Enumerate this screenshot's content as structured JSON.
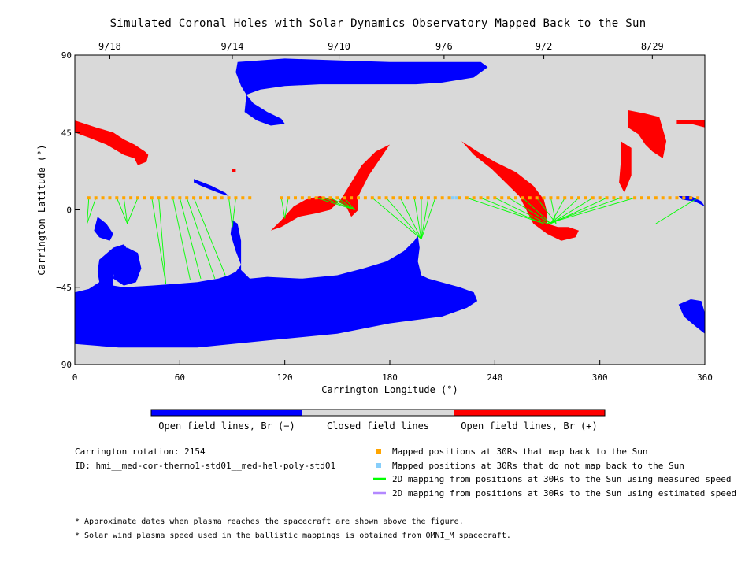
{
  "title": "Simulated Coronal Holes with Solar Dynamics Observatory Mapped Back to the Sun",
  "top_dates": [
    {
      "label": "9/18",
      "lon": 20
    },
    {
      "label": "9/14",
      "lon": 90
    },
    {
      "label": "9/10",
      "lon": 151
    },
    {
      "label": "9/6",
      "lon": 211
    },
    {
      "label": "9/2",
      "lon": 268
    },
    {
      "label": "8/29",
      "lon": 330
    }
  ],
  "colorbar": {
    "labels": [
      "Open field lines, Br (−)",
      "Closed field lines",
      "Open field lines, Br (+)"
    ],
    "colors": [
      "#0000ff",
      "#d9d9d9",
      "#ff0000"
    ]
  },
  "info": {
    "rotation": "Carrington rotation: 2154",
    "id": "ID: hmi__med-cor-thermo1-std01__med-hel-poly-std01"
  },
  "legend": [
    {
      "label": "Mapped positions at 30Rs that map back to the Sun",
      "color": "#ffa500",
      "kind": "square"
    },
    {
      "label": "Mapped positions at 30Rs that do not map back to the Sun",
      "color": "#87cefa",
      "kind": "square"
    },
    {
      "label": "2D mapping from positions at 30Rs to the Sun using measured speed",
      "color": "#00ff00",
      "kind": "line"
    },
    {
      "label": "2D mapping from positions at 30Rs to the Sun using estimated speed",
      "color": "#b388ff",
      "kind": "line"
    }
  ],
  "footnotes": [
    "* Approximate dates when plasma reaches the spacecraft are shown above the figure.",
    "* Solar wind plasma speed used in the ballistic mappings is obtained from OMNI_M spacecraft."
  ],
  "chart_data": {
    "type": "scatter",
    "title": "Simulated Coronal Holes with Solar Dynamics Observatory Mapped Back to the Sun",
    "xlabel": "Carrington Longitude (°)",
    "ylabel": "Carrington Latitude (°)",
    "xlim": [
      0,
      360
    ],
    "ylim": [
      -90,
      90
    ],
    "xticks": [
      0,
      60,
      120,
      180,
      240,
      300,
      360
    ],
    "yticks": [
      -90,
      -45,
      0,
      45,
      90
    ],
    "grid": false,
    "background_color": "#d9d9d9",
    "mapped_latitude": 7,
    "mapped_positions_lon": [
      8,
      12,
      16,
      20,
      24,
      28,
      32,
      36,
      40,
      44,
      48,
      52,
      56,
      60,
      64,
      68,
      72,
      76,
      80,
      84,
      88,
      92,
      96,
      100,
      118,
      122,
      126,
      130,
      134,
      138,
      142,
      146,
      150,
      154,
      158,
      162,
      166,
      170,
      174,
      178,
      182,
      186,
      190,
      194,
      198,
      202,
      206,
      210,
      214,
      220,
      224,
      228,
      232,
      236,
      240,
      244,
      248,
      252,
      256,
      260,
      264,
      268,
      272,
      276,
      280,
      284,
      288,
      292,
      296,
      300,
      304,
      308,
      312,
      316,
      320,
      324,
      328,
      332,
      336,
      340,
      344,
      348,
      352,
      356
    ],
    "unmapped_positions_lon": [
      216,
      218
    ],
    "coronal_hole_regions": [
      {
        "polarity": "negative",
        "region": "south polar hole",
        "lon": [
          0,
          230
        ],
        "lat": [
          -80,
          -43
        ]
      },
      {
        "polarity": "negative",
        "region": "south polar extension",
        "lon": [
          10,
          50
        ],
        "lat": [
          -50,
          -10
        ]
      },
      {
        "polarity": "negative",
        "region": "north polar hole",
        "lon": [
          93,
          237
        ],
        "lat": [
          65,
          85
        ]
      },
      {
        "polarity": "negative",
        "region": "lobe near 90",
        "lon": [
          85,
          95
        ],
        "lat": [
          -40,
          5
        ]
      },
      {
        "polarity": "negative",
        "region": "equatorial lobe near 200",
        "lon": [
          195,
          205
        ],
        "lat": [
          -45,
          -15
        ]
      },
      {
        "polarity": "negative",
        "region": "south hole near 360",
        "lon": [
          345,
          360
        ],
        "lat": [
          -70,
          -50
        ]
      },
      {
        "polarity": "positive",
        "region": "northwest hole",
        "lon": [
          0,
          50
        ],
        "lat": [
          25,
          50
        ]
      },
      {
        "polarity": "positive",
        "region": "central band",
        "lon": [
          112,
          180
        ],
        "lat": [
          -10,
          40
        ]
      },
      {
        "polarity": "positive",
        "region": "band near 250-290",
        "lon": [
          220,
          290
        ],
        "lat": [
          -15,
          45
        ]
      },
      {
        "polarity": "positive",
        "region": "northeast hole",
        "lon": [
          315,
          360
        ],
        "lat": [
          20,
          60
        ]
      }
    ],
    "mapping_lines": [
      {
        "from_lon": 8,
        "to": [
          7,
          -8
        ]
      },
      {
        "from_lon": 12,
        "to": [
          7,
          -8
        ]
      },
      {
        "from_lon": 24,
        "to": [
          30,
          -8
        ]
      },
      {
        "from_lon": 28,
        "to": [
          30,
          -8
        ]
      },
      {
        "from_lon": 36,
        "to": [
          30,
          -8
        ]
      },
      {
        "from_lon": 44,
        "to": [
          52,
          -43
        ]
      },
      {
        "from_lon": 48,
        "to": [
          52,
          -43
        ]
      },
      {
        "from_lon": 56,
        "to": [
          66,
          -41
        ]
      },
      {
        "from_lon": 60,
        "to": [
          72,
          -40
        ]
      },
      {
        "from_lon": 64,
        "to": [
          80,
          -40
        ]
      },
      {
        "from_lon": 68,
        "to": [
          86,
          -38
        ]
      },
      {
        "from_lon": 88,
        "to": [
          90,
          -10
        ]
      },
      {
        "from_lon": 92,
        "to": [
          90,
          -10
        ]
      },
      {
        "from_lon": 118,
        "to": [
          120,
          -5
        ]
      },
      {
        "from_lon": 122,
        "to": [
          120,
          -5
        ]
      },
      {
        "from_lon": 138,
        "to": [
          160,
          0
        ]
      },
      {
        "from_lon": 142,
        "to": [
          160,
          0
        ]
      },
      {
        "from_lon": 146,
        "to": [
          160,
          0
        ]
      },
      {
        "from_lon": 150,
        "to": [
          160,
          0
        ]
      },
      {
        "from_lon": 154,
        "to": [
          160,
          0
        ]
      },
      {
        "from_lon": 170,
        "to": [
          198,
          -17
        ]
      },
      {
        "from_lon": 178,
        "to": [
          198,
          -17
        ]
      },
      {
        "from_lon": 186,
        "to": [
          198,
          -17
        ]
      },
      {
        "from_lon": 194,
        "to": [
          198,
          -17
        ]
      },
      {
        "from_lon": 198,
        "to": [
          198,
          -17
        ]
      },
      {
        "from_lon": 202,
        "to": [
          198,
          -17
        ]
      },
      {
        "from_lon": 206,
        "to": [
          198,
          -17
        ]
      },
      {
        "from_lon": 224,
        "to": [
          268,
          -8
        ]
      },
      {
        "from_lon": 232,
        "to": [
          268,
          -8
        ]
      },
      {
        "from_lon": 240,
        "to": [
          270,
          -8
        ]
      },
      {
        "from_lon": 248,
        "to": [
          272,
          -8
        ]
      },
      {
        "from_lon": 256,
        "to": [
          272,
          -8
        ]
      },
      {
        "from_lon": 264,
        "to": [
          275,
          -8
        ]
      },
      {
        "from_lon": 272,
        "to": [
          275,
          -8
        ]
      },
      {
        "from_lon": 280,
        "to": [
          272,
          -8
        ]
      },
      {
        "from_lon": 288,
        "to": [
          272,
          -8
        ]
      },
      {
        "from_lon": 296,
        "to": [
          272,
          -8
        ]
      },
      {
        "from_lon": 304,
        "to": [
          272,
          -8
        ]
      },
      {
        "from_lon": 312,
        "to": [
          270,
          -8
        ]
      },
      {
        "from_lon": 320,
        "to": [
          270,
          -8
        ]
      },
      {
        "from_lon": 356,
        "to": [
          332,
          -8
        ]
      }
    ]
  }
}
